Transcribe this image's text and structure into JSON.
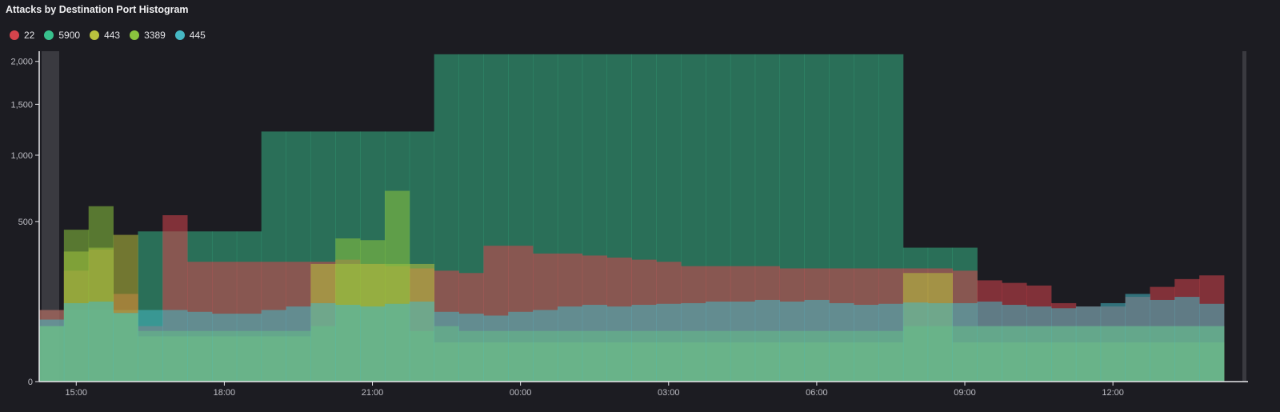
{
  "chart_data": {
    "type": "area",
    "title": "Attacks by Destination Port Histogram",
    "xlabel": "",
    "ylabel": "",
    "y_scale": "sqrt",
    "ylim": [
      0,
      2150
    ],
    "y_ticks": [
      0,
      500,
      1000,
      1500,
      2000
    ],
    "y_tick_labels": [
      "0",
      "500",
      "1,000",
      "1,500",
      "2,000"
    ],
    "x_ticks": [
      {
        "at": 2,
        "label": "15:00"
      },
      {
        "at": 8,
        "label": "18:00"
      },
      {
        "at": 14,
        "label": "21:00"
      },
      {
        "at": 20,
        "label": "00:00"
      },
      {
        "at": 26,
        "label": "03:00"
      },
      {
        "at": 32,
        "label": "06:00"
      },
      {
        "at": 38,
        "label": "09:00"
      },
      {
        "at": 44,
        "label": "12:00"
      }
    ],
    "x_start": 1,
    "bucket_count": 48,
    "grid": false,
    "legend": "top-left",
    "series": [
      {
        "name": "22",
        "color": "#d5444c",
        "values": [
          100,
          240,
          340,
          150,
          60,
          540,
          280,
          280,
          280,
          280,
          280,
          280,
          290,
          270,
          260,
          250,
          240,
          230,
          360,
          360,
          320,
          320,
          310,
          300,
          290,
          280,
          260,
          260,
          260,
          260,
          250,
          250,
          250,
          250,
          250,
          250,
          250,
          240,
          200,
          190,
          180,
          120,
          110,
          110,
          140,
          175,
          205,
          220
        ]
      },
      {
        "name": "5900",
        "color": "#38c18d",
        "values": [
          100,
          100,
          100,
          100,
          440,
          440,
          440,
          440,
          440,
          1220,
          1220,
          1220,
          1220,
          1220,
          1220,
          1220,
          2090,
          2090,
          2090,
          2090,
          2090,
          2090,
          2090,
          2090,
          2090,
          2090,
          2090,
          2090,
          2090,
          2090,
          2090,
          2090,
          2090,
          2090,
          2090,
          350,
          350,
          350,
          60,
          60,
          60,
          60,
          60,
          60,
          60,
          60,
          60,
          60
        ]
      },
      {
        "name": "443",
        "color": "#b9c23e",
        "values": [
          60,
          330,
          350,
          420,
          40,
          40,
          40,
          40,
          40,
          40,
          40,
          270,
          270,
          270,
          270,
          270,
          30,
          30,
          30,
          30,
          30,
          30,
          30,
          30,
          30,
          30,
          30,
          30,
          30,
          30,
          30,
          30,
          30,
          30,
          30,
          230,
          230,
          30,
          30,
          30,
          30,
          30,
          30,
          30,
          30,
          30,
          30,
          30
        ]
      },
      {
        "name": "3389",
        "color": "#8ac43e",
        "values": [
          60,
          450,
          600,
          90,
          50,
          50,
          50,
          50,
          50,
          50,
          50,
          60,
          400,
          390,
          710,
          50,
          60,
          50,
          50,
          50,
          50,
          50,
          50,
          50,
          50,
          50,
          50,
          50,
          50,
          50,
          50,
          50,
          50,
          50,
          50,
          60,
          60,
          60,
          60,
          60,
          60,
          60,
          60,
          60,
          60,
          60,
          60,
          60
        ]
      },
      {
        "name": "445",
        "color": "#46b8c4",
        "values": [
          75,
          120,
          125,
          92,
          100,
          100,
          95,
          90,
          90,
          100,
          110,
          120,
          115,
          110,
          118,
          125,
          95,
          90,
          85,
          95,
          100,
          110,
          115,
          110,
          115,
          118,
          120,
          125,
          125,
          130,
          125,
          130,
          120,
          115,
          118,
          122,
          120,
          120,
          125,
          115,
          110,
          105,
          110,
          120,
          150,
          130,
          140,
          118
        ]
      }
    ]
  }
}
